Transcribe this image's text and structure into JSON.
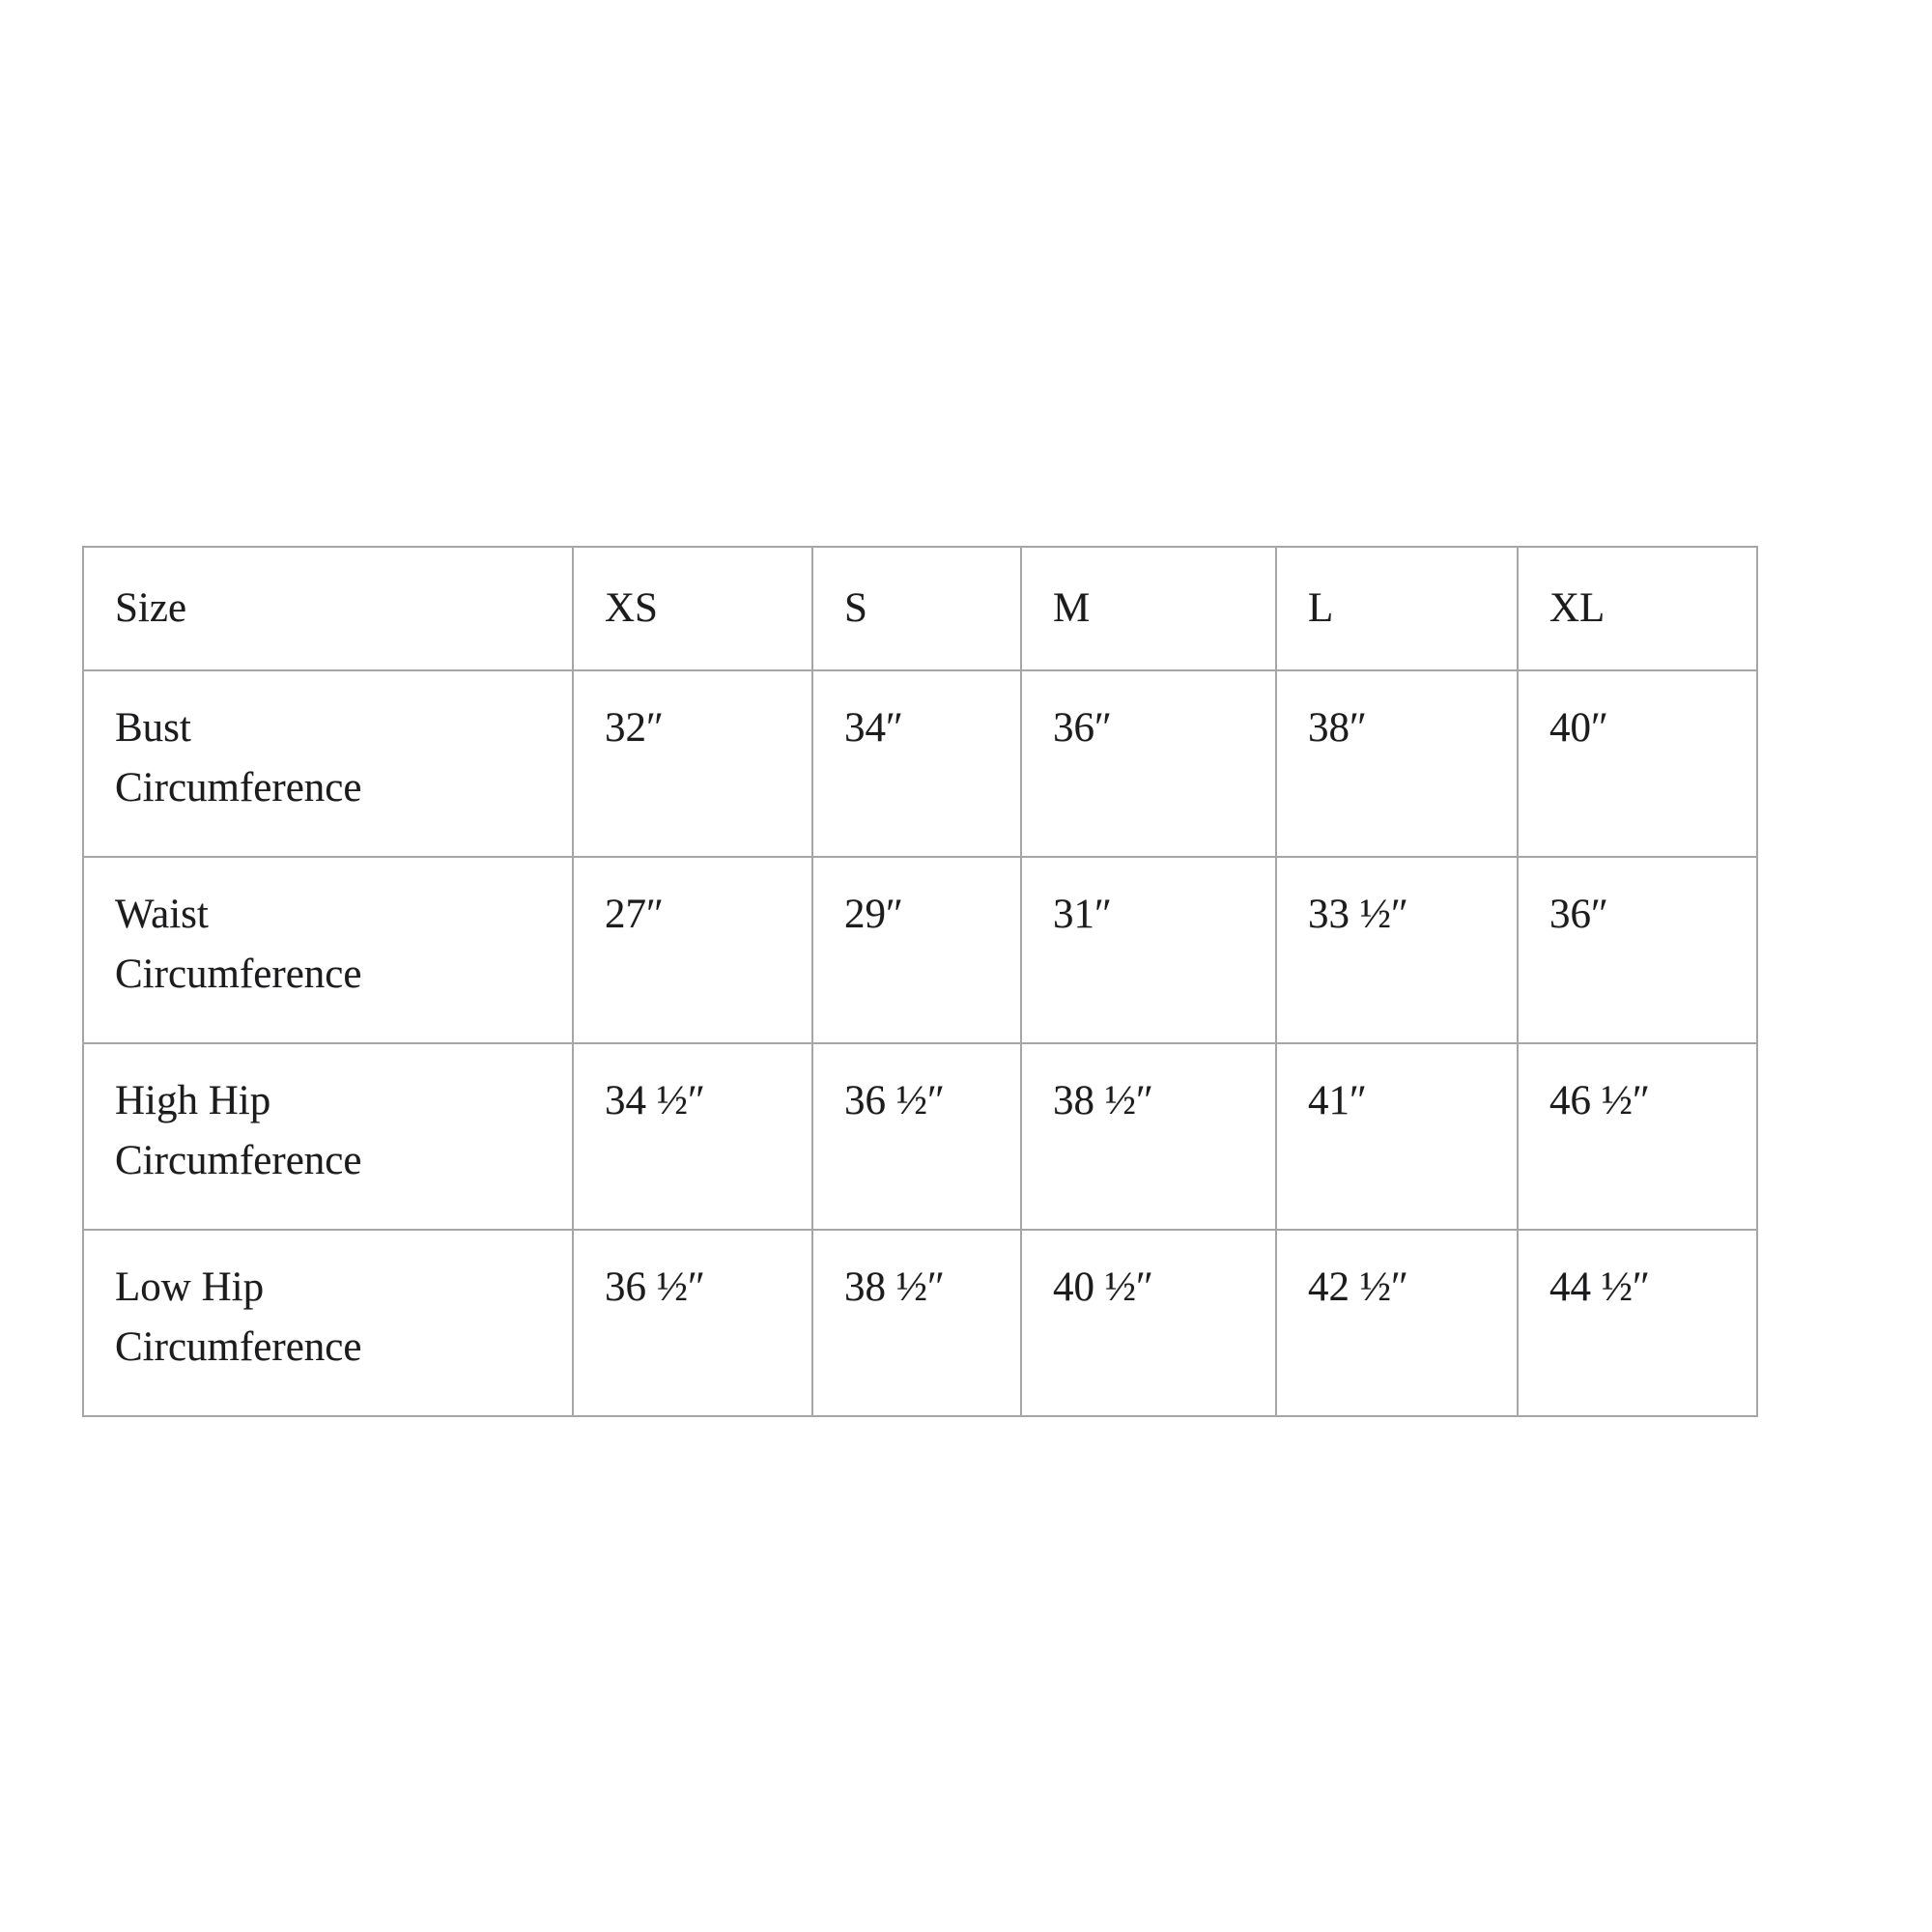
{
  "chart_data": {
    "type": "table",
    "title": "",
    "columns": [
      "Size",
      "XS",
      "S",
      "M",
      "L",
      "XL"
    ],
    "rows": [
      {
        "label": "Bust Circumference",
        "values": [
          "32\"",
          "34\"",
          "36\"",
          "38\"",
          "40\""
        ]
      },
      {
        "label": "Waist Circumference",
        "values": [
          "27\"",
          "29\"",
          "31\"",
          "33 1/2\"",
          "36\""
        ]
      },
      {
        "label": "High Hip Circumference",
        "values": [
          "34 1/2\"",
          "36 1/2\"",
          "38 1/2\"",
          "41\"",
          "46 1/2\""
        ]
      },
      {
        "label": "Low Hip Circumference",
        "values": [
          "36 1/2\"",
          "38 1/2\"",
          "40 1/2\"",
          "42 1/2\"",
          "44 1/2\""
        ]
      }
    ]
  },
  "table": {
    "header": {
      "size": "Size",
      "xs": "XS",
      "s": "S",
      "m": "M",
      "l": "L",
      "xl": "XL"
    },
    "rows": [
      {
        "label": "Bust\nCircumference",
        "values": [
          "32″",
          "34″",
          "36″",
          "38″",
          "40″"
        ]
      },
      {
        "label": "Waist\nCircumference",
        "values": [
          "27″",
          "29″",
          "31″",
          "33 ½″",
          "36″"
        ]
      },
      {
        "label": "High Hip\nCircumference",
        "values": [
          "34 ½″",
          "36 ½″",
          "38 ½″",
          "41″",
          "46 ½″"
        ]
      },
      {
        "label": "Low Hip\nCircumference",
        "values": [
          "36 ½″",
          "38 ½″",
          "40 ½″",
          "42 ½″",
          "44 ½″"
        ]
      }
    ]
  },
  "colors": {
    "border": "#a6a6a6",
    "text": "#1c1c1c",
    "background": "#ffffff"
  }
}
